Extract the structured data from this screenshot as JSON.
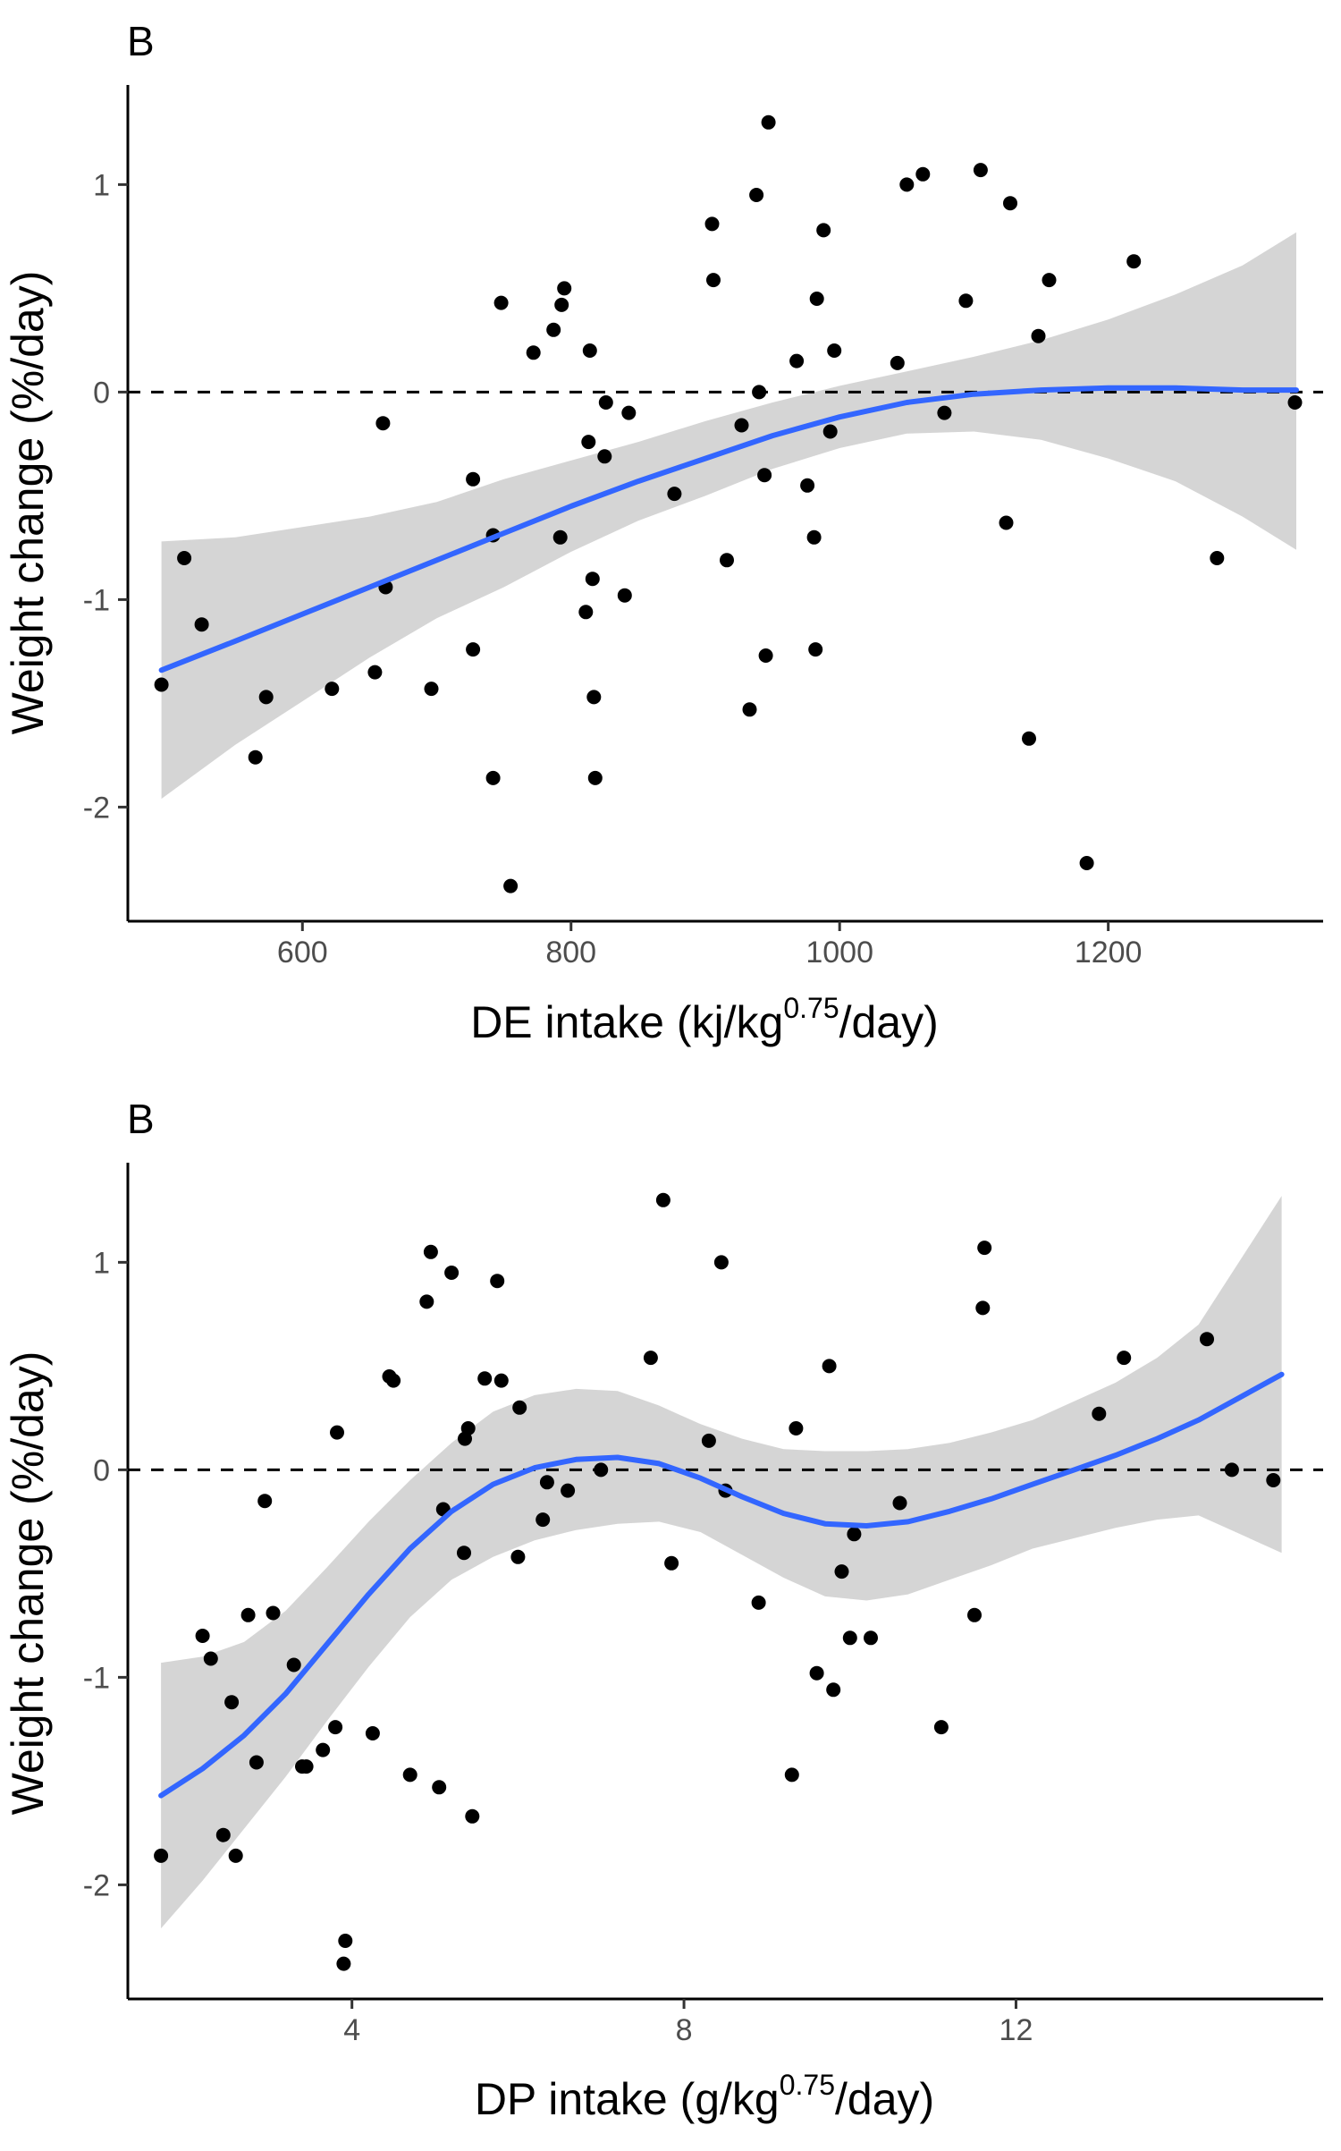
{
  "chart_data": [
    {
      "type": "scatter",
      "panel_label": "B",
      "xlabel_main": "DE intake (kj/kg",
      "xlabel_sup": "0.75",
      "xlabel_tail": "/day)",
      "ylabel": "Weight change (%/day)",
      "xlim": [
        470,
        1360
      ],
      "ylim": [
        -2.55,
        1.48
      ],
      "xticks": [
        600,
        800,
        1000,
        1200
      ],
      "yticks": [
        -2,
        -1,
        0,
        1
      ],
      "reference_line_y": 0,
      "smooth": {
        "x": [
          495,
          550,
          600,
          650,
          700,
          750,
          800,
          850,
          900,
          950,
          1000,
          1050,
          1100,
          1150,
          1200,
          1250,
          1300,
          1340
        ],
        "y": [
          -1.34,
          -1.2,
          -1.07,
          -0.94,
          -0.81,
          -0.68,
          -0.55,
          -0.43,
          -0.32,
          -0.21,
          -0.12,
          -0.05,
          -0.01,
          0.01,
          0.02,
          0.02,
          0.01,
          0.01
        ],
        "upper": [
          -0.72,
          -0.7,
          -0.65,
          -0.6,
          -0.53,
          -0.42,
          -0.33,
          -0.24,
          -0.14,
          -0.05,
          0.03,
          0.1,
          0.17,
          0.25,
          0.35,
          0.47,
          0.61,
          0.77
        ],
        "lower": [
          -1.96,
          -1.7,
          -1.49,
          -1.28,
          -1.09,
          -0.94,
          -0.77,
          -0.62,
          -0.5,
          -0.37,
          -0.27,
          -0.2,
          -0.19,
          -0.23,
          -0.32,
          -0.43,
          -0.6,
          -0.76
        ]
      },
      "points": {
        "x": [
          495,
          512,
          525,
          565,
          573,
          622,
          654,
          660,
          662,
          696,
          727,
          727,
          742,
          742,
          748,
          755,
          772,
          787,
          792,
          793,
          795,
          811,
          813,
          814,
          816,
          817,
          818,
          825,
          826,
          840,
          843,
          877,
          905,
          906,
          916,
          927,
          933,
          938,
          940,
          944,
          945,
          947,
          968,
          976,
          981,
          982,
          983,
          988,
          993,
          996,
          1043,
          1050,
          1062,
          1078,
          1094,
          1105,
          1124,
          1127,
          1141,
          1148,
          1156,
          1184,
          1219,
          1281,
          1339
        ],
        "y": [
          -1.41,
          -0.8,
          -1.12,
          -1.76,
          -1.47,
          -1.43,
          -1.35,
          -0.15,
          -0.94,
          -1.43,
          -1.24,
          -0.42,
          -0.69,
          -1.86,
          0.43,
          -2.38,
          0.19,
          0.3,
          -0.7,
          0.42,
          0.5,
          -1.06,
          -0.24,
          0.2,
          -0.9,
          -1.47,
          -1.86,
          -0.31,
          -0.05,
          -0.98,
          -0.1,
          -0.49,
          0.81,
          0.54,
          -0.81,
          -0.16,
          -1.53,
          0.95,
          0.0,
          -0.4,
          -1.27,
          1.3,
          0.15,
          -0.45,
          -0.7,
          -1.24,
          0.45,
          0.78,
          -0.19,
          0.2,
          0.14,
          1.0,
          1.05,
          -0.1,
          0.44,
          1.07,
          -0.63,
          0.91,
          -1.67,
          0.27,
          0.54,
          -2.27,
          0.63,
          -0.8,
          -0.05
        ]
      }
    },
    {
      "type": "scatter",
      "panel_label": "B",
      "xlabel_main": "DP intake (g/kg",
      "xlabel_sup": "0.75",
      "xlabel_tail": "/day)",
      "ylabel": "Weight change (%/day)",
      "xlim": [
        1.3,
        15.7
      ],
      "ylim": [
        -2.55,
        1.48
      ],
      "xticks": [
        4,
        8,
        12
      ],
      "yticks": [
        -2,
        -1,
        0,
        1
      ],
      "reference_line_y": 0,
      "smooth": {
        "x": [
          1.7,
          2.2,
          2.7,
          3.2,
          3.7,
          4.2,
          4.7,
          5.2,
          5.7,
          6.2,
          6.7,
          7.2,
          7.7,
          8.2,
          8.7,
          9.2,
          9.7,
          10.2,
          10.7,
          11.2,
          11.7,
          12.2,
          12.7,
          13.2,
          13.7,
          14.2,
          14.7,
          15.2
        ],
        "y": [
          -1.57,
          -1.44,
          -1.28,
          -1.08,
          -0.84,
          -0.6,
          -0.38,
          -0.2,
          -0.07,
          0.01,
          0.05,
          0.06,
          0.03,
          -0.04,
          -0.13,
          -0.21,
          -0.26,
          -0.27,
          -0.25,
          -0.2,
          -0.14,
          -0.07,
          0.0,
          0.07,
          0.15,
          0.24,
          0.35,
          0.46
        ],
        "upper": [
          -0.93,
          -0.9,
          -0.83,
          -0.68,
          -0.47,
          -0.25,
          -0.05,
          0.13,
          0.28,
          0.36,
          0.39,
          0.38,
          0.31,
          0.22,
          0.15,
          0.1,
          0.09,
          0.09,
          0.1,
          0.13,
          0.18,
          0.24,
          0.33,
          0.42,
          0.54,
          0.7,
          1.01,
          1.32
        ],
        "lower": [
          -2.21,
          -1.98,
          -1.73,
          -1.48,
          -1.21,
          -0.95,
          -0.71,
          -0.53,
          -0.42,
          -0.34,
          -0.29,
          -0.26,
          -0.25,
          -0.3,
          -0.41,
          -0.52,
          -0.61,
          -0.63,
          -0.6,
          -0.53,
          -0.46,
          -0.38,
          -0.33,
          -0.28,
          -0.24,
          -0.22,
          -0.31,
          -0.4
        ]
      },
      "points": {
        "x": [
          1.7,
          2.2,
          2.3,
          2.45,
          2.55,
          2.6,
          2.75,
          2.85,
          2.95,
          3.05,
          3.3,
          3.4,
          3.45,
          3.65,
          3.8,
          3.82,
          3.9,
          3.92,
          4.25,
          4.45,
          4.5,
          4.7,
          4.9,
          4.95,
          5.05,
          5.1,
          5.2,
          5.35,
          5.36,
          5.4,
          5.45,
          5.6,
          5.75,
          5.8,
          6.0,
          6.02,
          6.3,
          6.35,
          6.6,
          7.0,
          7.6,
          7.75,
          7.85,
          8.3,
          8.45,
          8.5,
          8.9,
          9.3,
          9.35,
          9.6,
          9.75,
          9.8,
          9.9,
          10.0,
          10.05,
          10.25,
          10.6,
          11.1,
          11.5,
          11.6,
          11.62,
          13.0,
          13.3,
          14.3,
          14.6,
          15.1
        ],
        "y": [
          -1.86,
          -0.8,
          -0.91,
          -1.76,
          -1.12,
          -1.86,
          -0.7,
          -1.41,
          -0.15,
          -0.69,
          -0.94,
          -1.43,
          -1.43,
          -1.35,
          -1.24,
          0.18,
          -2.38,
          -2.27,
          -1.27,
          0.45,
          0.43,
          -1.47,
          0.81,
          1.05,
          -1.53,
          -0.19,
          0.95,
          -0.4,
          0.15,
          0.2,
          -1.67,
          0.44,
          0.91,
          0.43,
          -0.42,
          0.3,
          -0.24,
          -0.06,
          -0.1,
          0.0,
          0.54,
          1.3,
          -0.45,
          0.14,
          1.0,
          -0.1,
          -0.64,
          -1.47,
          0.2,
          -0.98,
          0.5,
          -1.06,
          -0.49,
          -0.81,
          -0.31,
          -0.81,
          -0.16,
          -1.24,
          -0.7,
          0.78,
          1.07,
          0.27,
          0.54,
          0.63,
          0.0,
          -0.05
        ]
      }
    }
  ]
}
